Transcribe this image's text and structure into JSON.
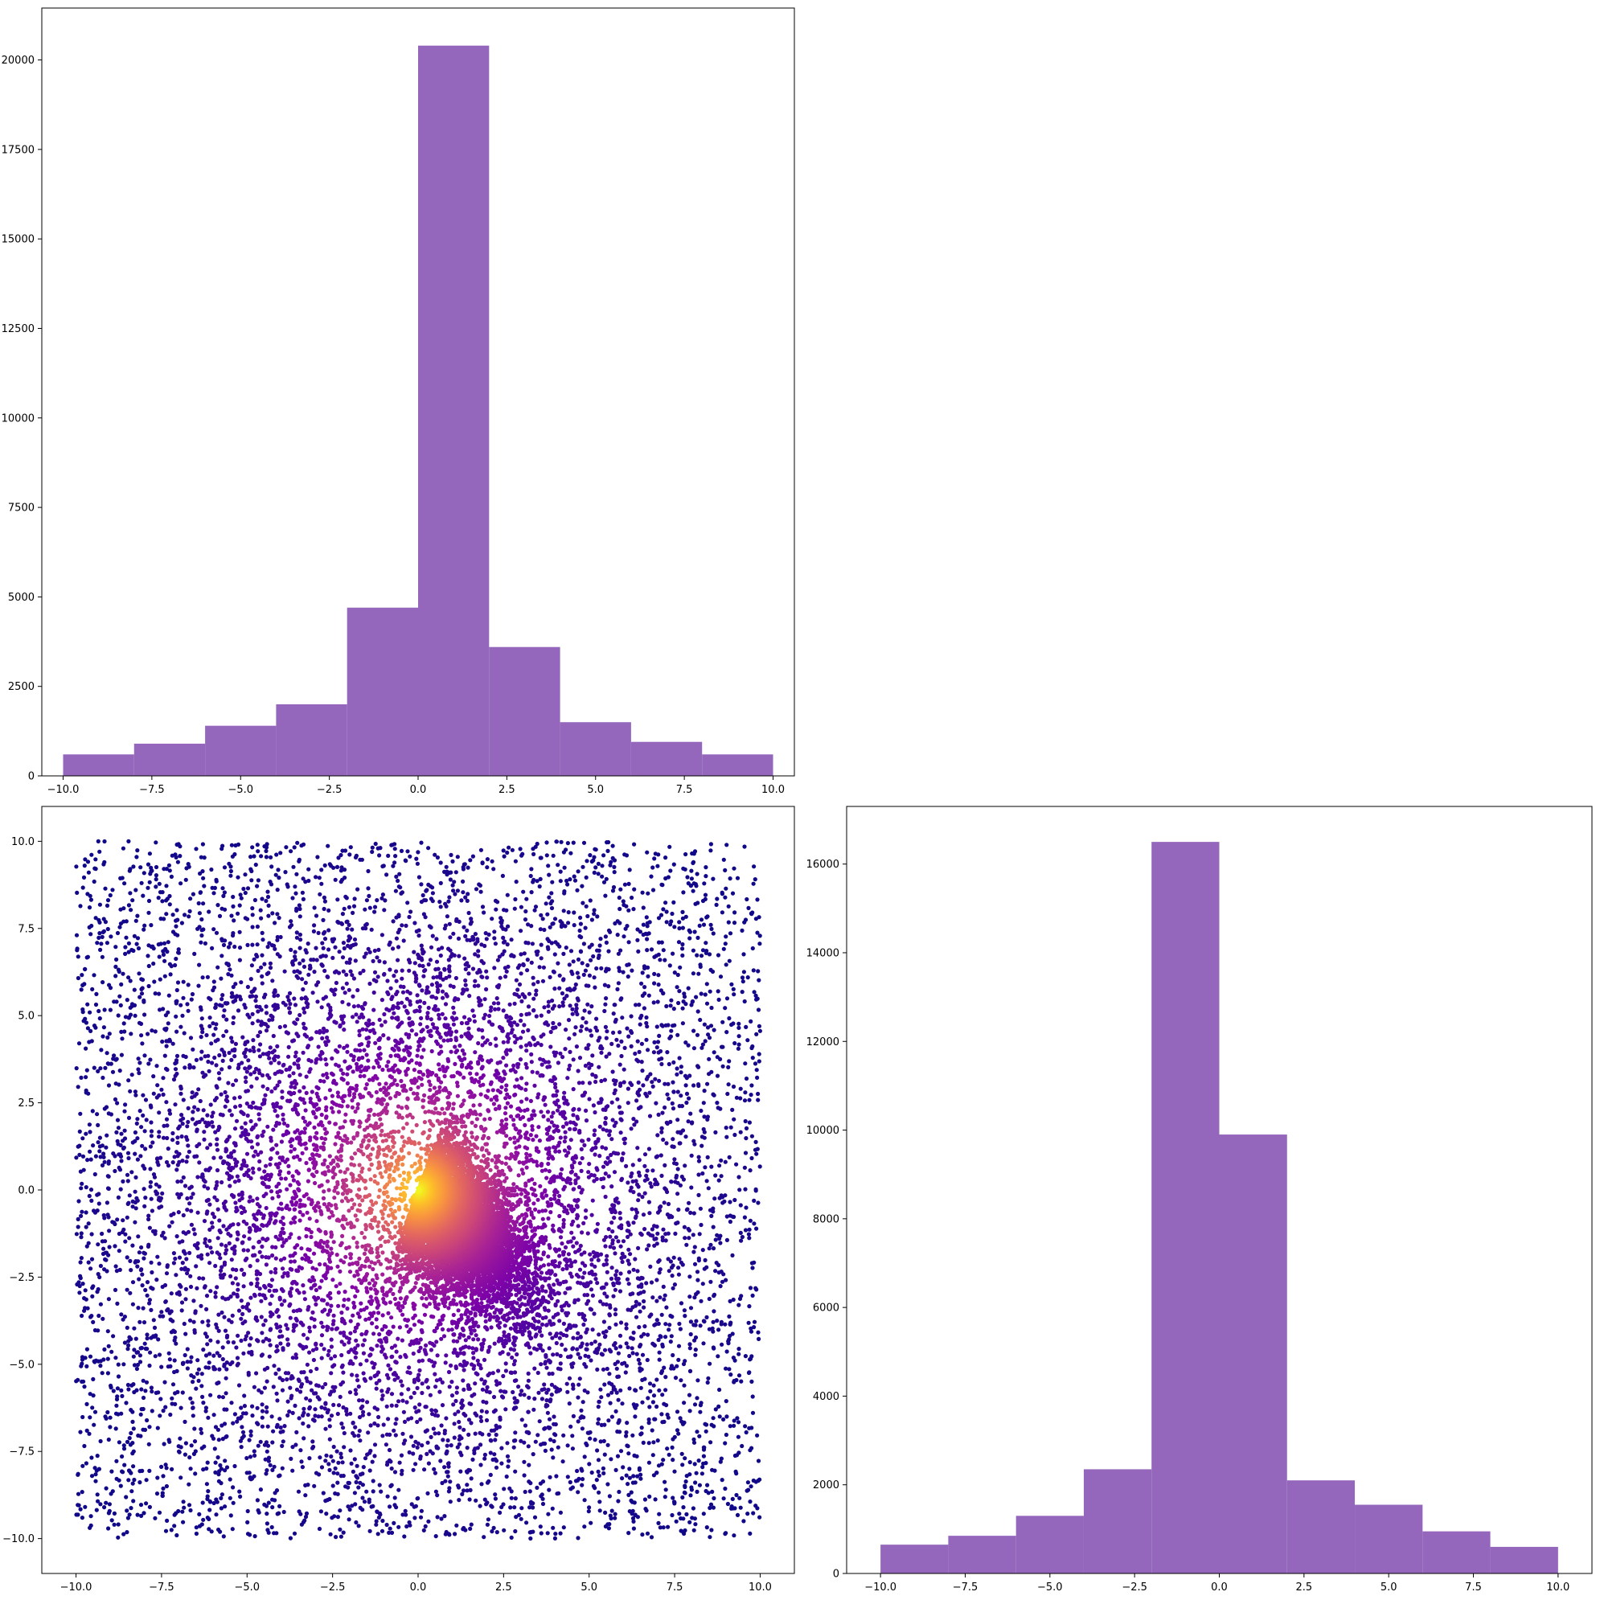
{
  "figure": {
    "background": "#ffffff"
  },
  "chart_data": [
    {
      "type": "bar",
      "panel": "top-left",
      "subtype": "histogram",
      "color": "#9467bd",
      "bin_edges": [
        -10,
        -8,
        -6,
        -4,
        -2,
        0,
        2,
        4,
        6,
        8,
        10
      ],
      "values": [
        600,
        900,
        1400,
        2000,
        4700,
        20400,
        3600,
        1500,
        950,
        600
      ],
      "xlim": [
        -10.6,
        10.6
      ],
      "ylim": [
        0,
        21450
      ],
      "xticks": [
        -10,
        -7.5,
        -5,
        -2.5,
        0,
        2.5,
        5,
        7.5,
        10
      ],
      "xtick_labels": [
        "−10.0",
        "−7.5",
        "−5.0",
        "−2.5",
        "0.0",
        "2.5",
        "5.0",
        "7.5",
        "10.0"
      ],
      "yticks": [
        0,
        2500,
        5000,
        7500,
        10000,
        12500,
        15000,
        17500,
        20000
      ],
      "ytick_labels": [
        "0",
        "2500",
        "5000",
        "7500",
        "10000",
        "12500",
        "15000",
        "17500",
        "20000"
      ],
      "grid": false
    },
    {
      "type": "scatter",
      "panel": "bottom-left",
      "colormap": "plasma",
      "x_range": [
        -10,
        10
      ],
      "y_range": [
        -10,
        10
      ],
      "density_peak": [
        0,
        0
      ],
      "color_low": "#0d0887",
      "color_high": "#f0f921",
      "xlim": [
        -11,
        11
      ],
      "ylim": [
        -11,
        11
      ],
      "xticks": [
        -10,
        -7.5,
        -5,
        -2.5,
        0,
        2.5,
        5,
        7.5,
        10
      ],
      "xtick_labels": [
        "−10.0",
        "−7.5",
        "−5.0",
        "−2.5",
        "0.0",
        "2.5",
        "5.0",
        "7.5",
        "10.0"
      ],
      "yticks": [
        -10,
        -7.5,
        -5,
        -2.5,
        0,
        2.5,
        5,
        7.5,
        10
      ],
      "ytick_labels": [
        "−10.0",
        "−7.5",
        "−5.0",
        "−2.5",
        "0.0",
        "2.5",
        "5.0",
        "7.5",
        "10.0"
      ],
      "grid": false
    },
    {
      "type": "bar",
      "panel": "bottom-right",
      "subtype": "histogram",
      "color": "#9467bd",
      "bin_edges": [
        -10,
        -8,
        -6,
        -4,
        -2,
        0,
        2,
        4,
        6,
        8,
        10
      ],
      "values": [
        650,
        850,
        1300,
        2350,
        16500,
        9900,
        2100,
        1550,
        950,
        600
      ],
      "xlim": [
        -11,
        11
      ],
      "ylim": [
        0,
        17300
      ],
      "xticks": [
        -10,
        -7.5,
        -5,
        -2.5,
        0,
        2.5,
        5,
        7.5,
        10
      ],
      "xtick_labels": [
        "−10.0",
        "−7.5",
        "−5.0",
        "−2.5",
        "0.0",
        "2.5",
        "5.0",
        "7.5",
        "10.0"
      ],
      "yticks": [
        0,
        2000,
        4000,
        6000,
        8000,
        10000,
        12000,
        14000,
        16000
      ],
      "ytick_labels": [
        "0",
        "2000",
        "4000",
        "6000",
        "8000",
        "10000",
        "12000",
        "14000",
        "16000"
      ],
      "grid": false
    }
  ]
}
